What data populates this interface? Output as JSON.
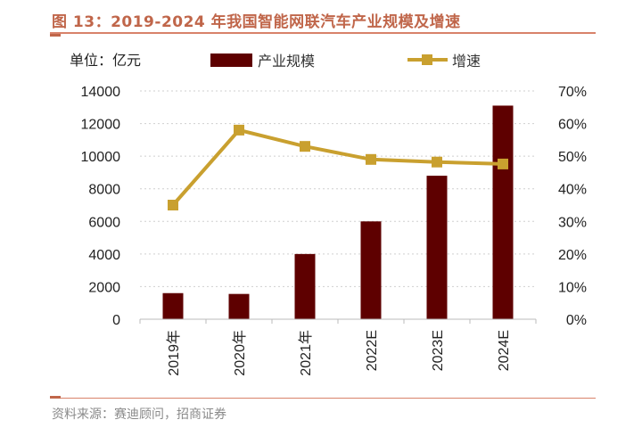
{
  "chart_data": {
    "type": "bar",
    "title": "图 13：2019-2024 年我国智能网联汽车产业规模及增速",
    "unit_label": "单位：亿元",
    "categories": [
      "2019年",
      "2020年",
      "2021年",
      "2022E",
      "2023E",
      "2024E"
    ],
    "series": [
      {
        "name": "产业规模",
        "type": "bar",
        "axis": "left",
        "color": "#5e0000",
        "values": [
          1600,
          1550,
          4000,
          6000,
          8800,
          13100
        ]
      },
      {
        "name": "增速",
        "type": "line",
        "axis": "right",
        "color": "#c9a02f",
        "marker": "square",
        "values": [
          35,
          58,
          53,
          49,
          48.2,
          47.6
        ]
      }
    ],
    "y_left": {
      "range": [
        0,
        14000
      ],
      "ticks": [
        "0",
        "2000",
        "4000",
        "6000",
        "8000",
        "10000",
        "12000",
        "14000"
      ]
    },
    "y_right": {
      "range": [
        0,
        70
      ],
      "ticks": [
        "0%",
        "10%",
        "20%",
        "30%",
        "40%",
        "50%",
        "60%",
        "70%"
      ]
    },
    "grid": "dotted horizontal",
    "legend_placement": "top",
    "source": "资料来源：赛迪顾问，招商证券"
  }
}
